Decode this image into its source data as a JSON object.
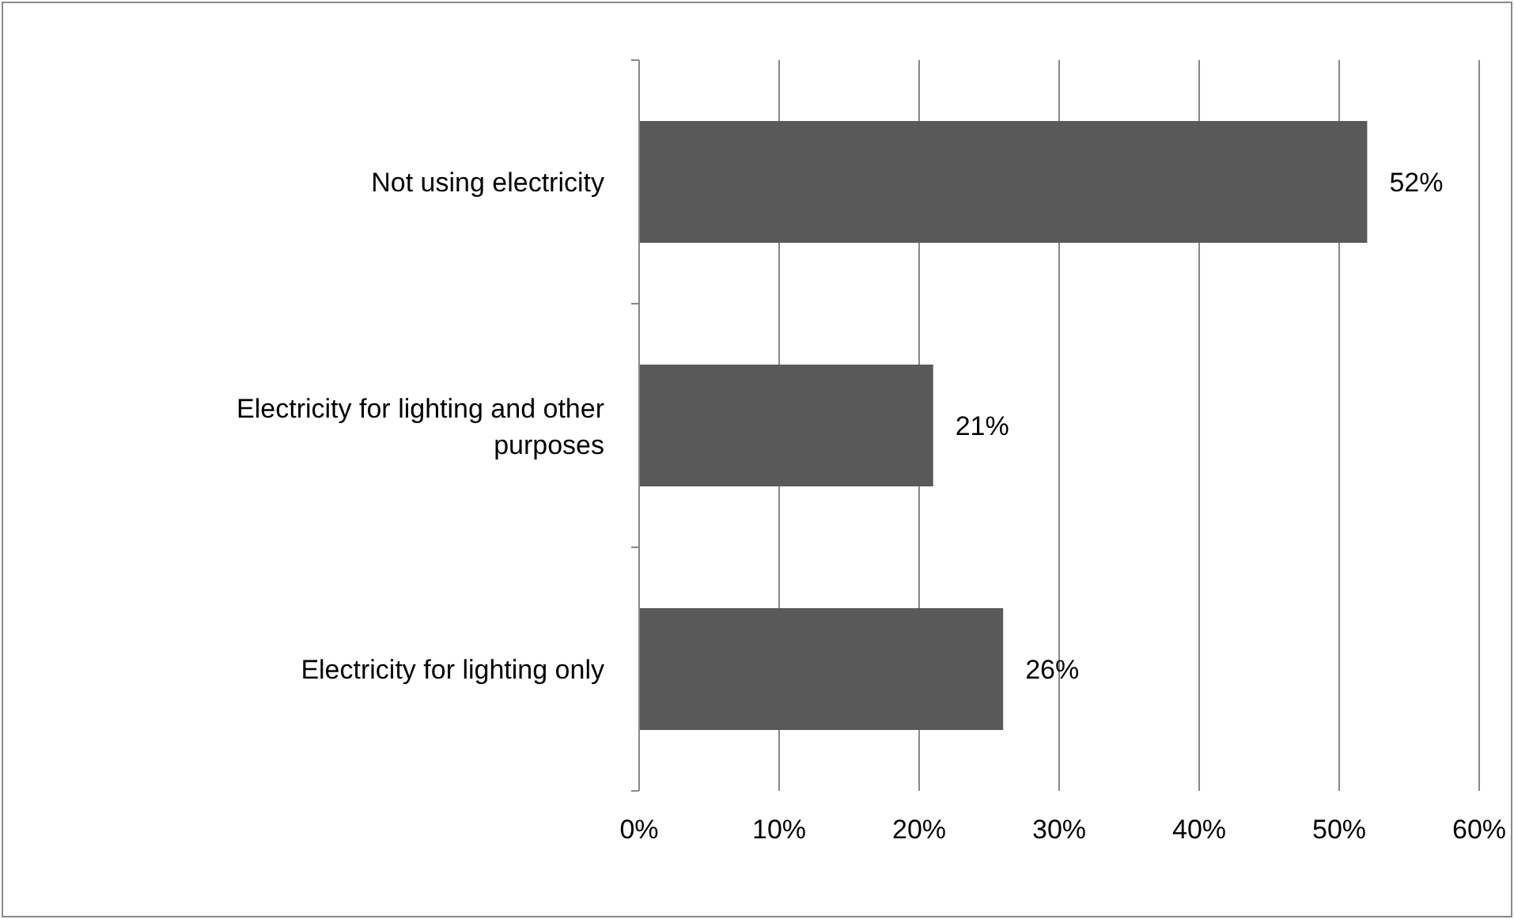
{
  "chart_data": {
    "type": "bar",
    "orientation": "horizontal",
    "categories": [
      "Not using electricity",
      "Electricity for lighting and other purposes",
      "Electricity for lighting only"
    ],
    "values": [
      52,
      21,
      26
    ],
    "color": "#595959",
    "value_labels": [
      "52%",
      "21%",
      "26%"
    ],
    "xlim": [
      0,
      60
    ],
    "xticks": [
      {
        "value": 0,
        "label": "0%"
      },
      {
        "value": 10,
        "label": "10%"
      },
      {
        "value": 20,
        "label": "20%"
      },
      {
        "value": 30,
        "label": "30%"
      },
      {
        "value": 40,
        "label": "40%"
      },
      {
        "value": 50,
        "label": "50%"
      },
      {
        "value": 60,
        "label": "60%"
      }
    ],
    "grid": "x"
  }
}
